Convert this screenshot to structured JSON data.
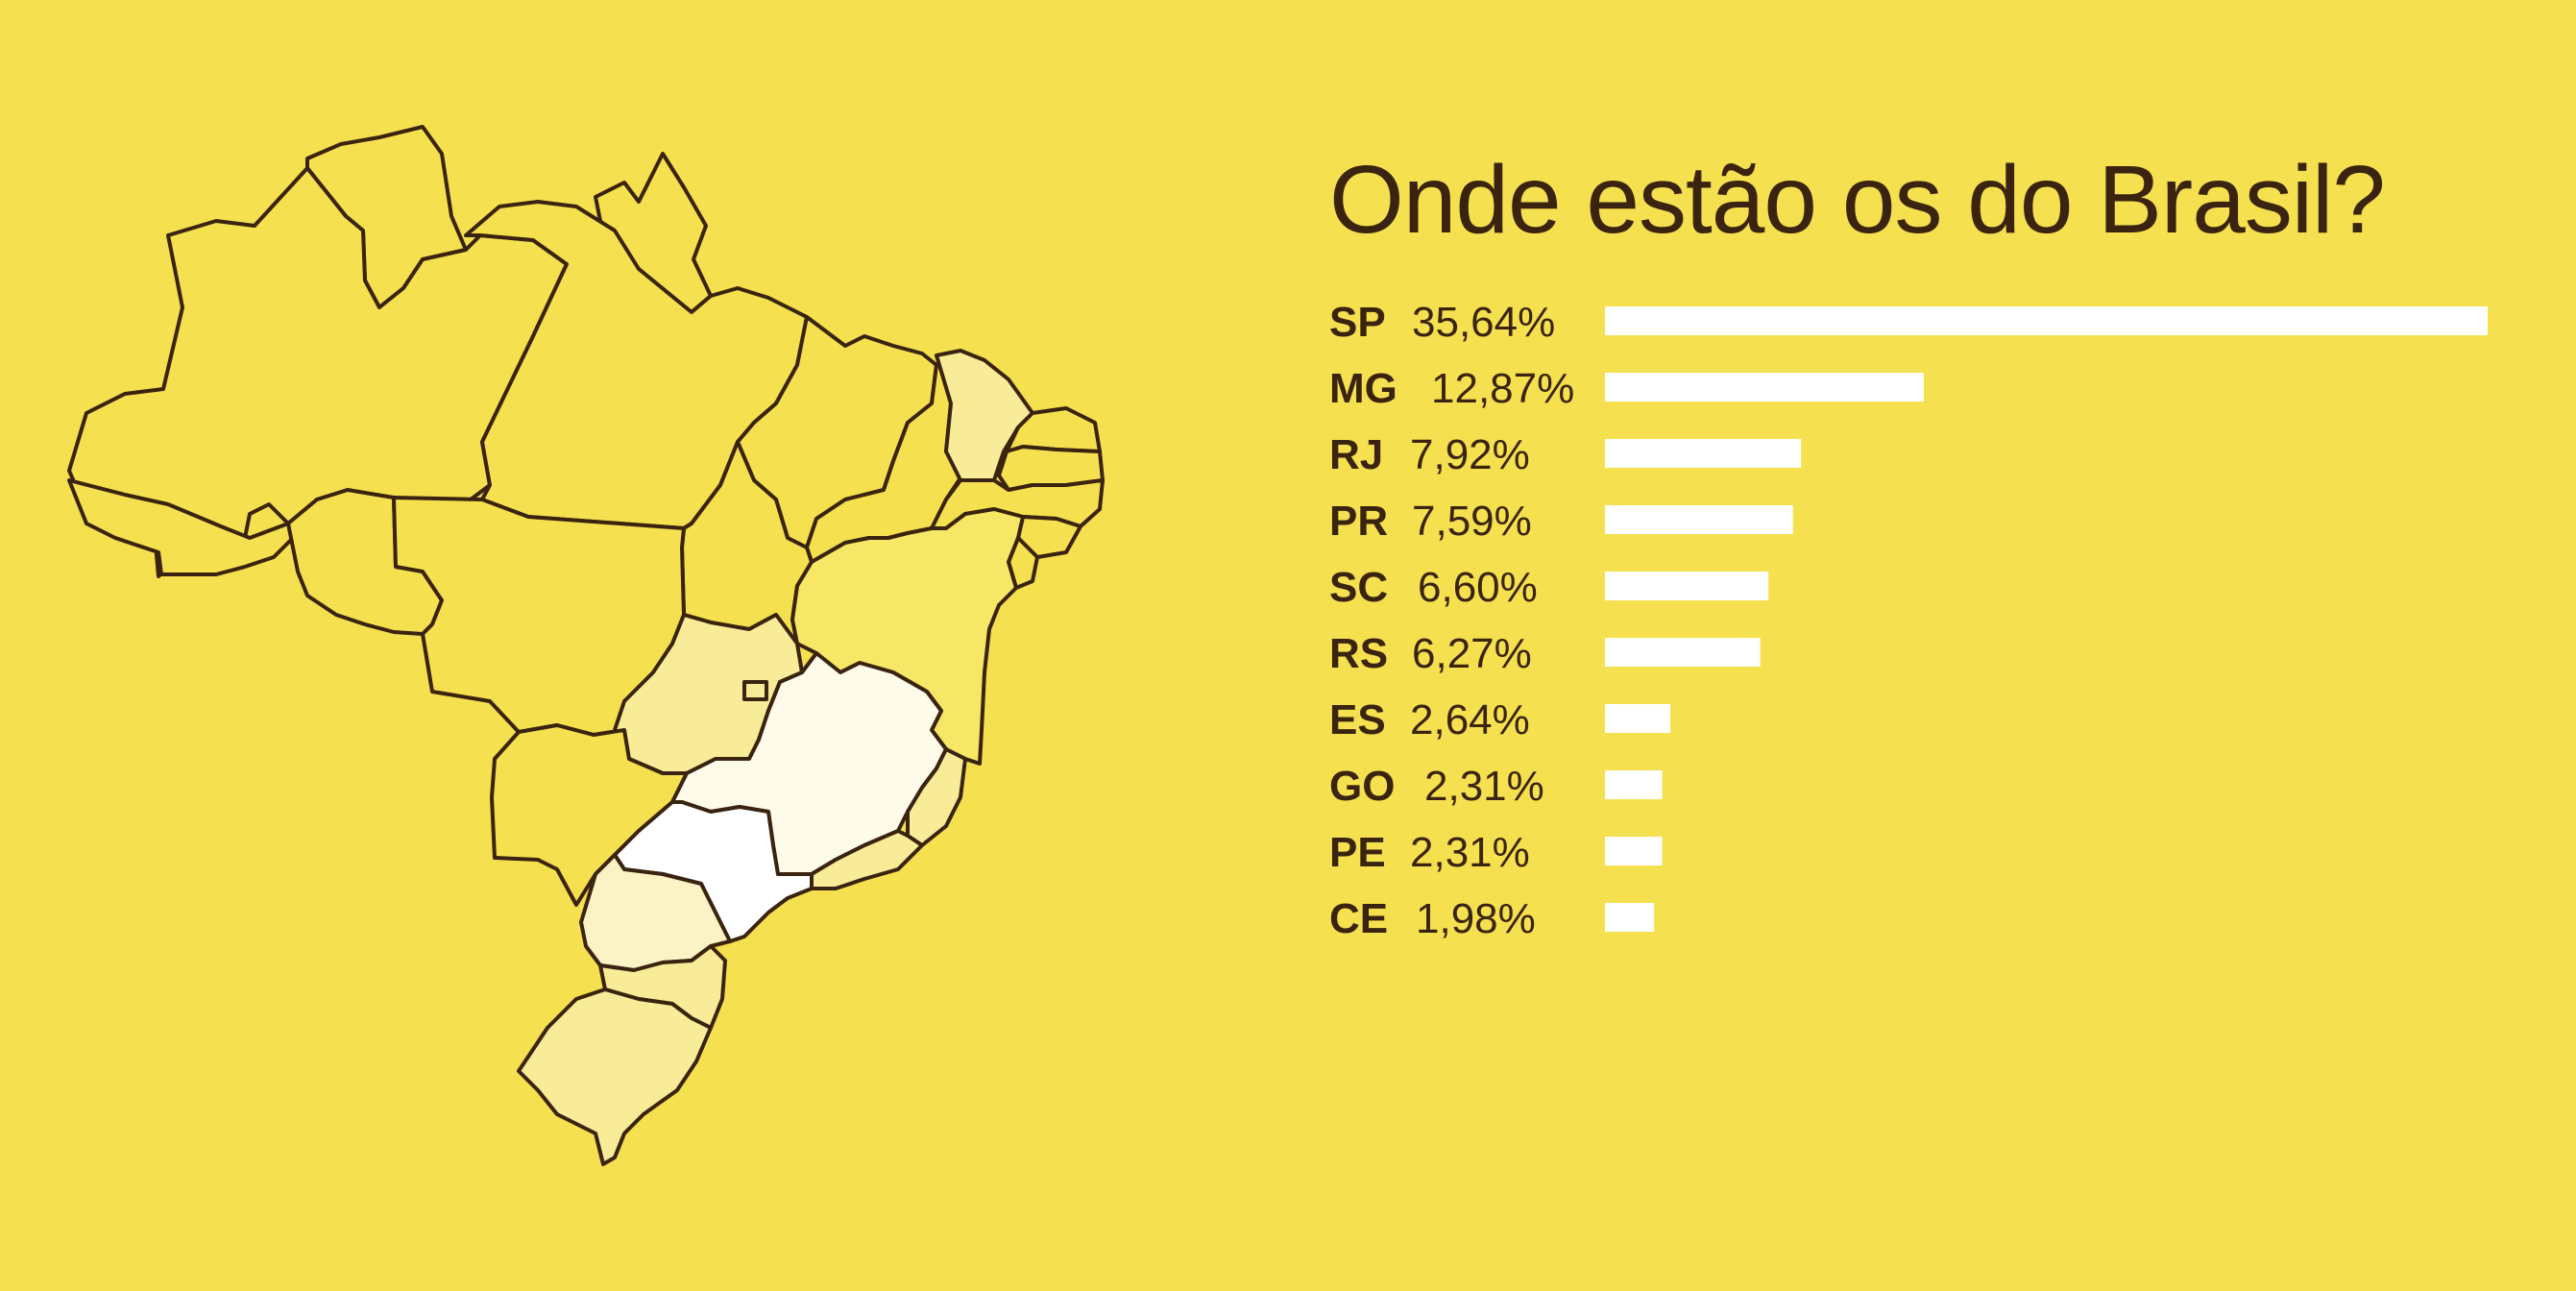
{
  "page": {
    "background_color": "#F5E04F",
    "text_color": "#3a2410"
  },
  "map": {
    "colors": {
      "base": "#F5E04F",
      "mid": "#F7E766",
      "light": "#F8EC99",
      "pale": "#FBF3C6",
      "whiteish": "#FEFBEA",
      "white": "#FFFFFF",
      "outline": "#3a2410"
    }
  },
  "chart_data": {
    "type": "bar",
    "orientation": "horizontal",
    "title": "Onde estão os do Brasil?",
    "categories": [
      "SP",
      "MG",
      "RJ",
      "PR",
      "SC",
      "RS",
      "ES",
      "GO",
      "PE",
      "CE"
    ],
    "value_labels": [
      "35,64%",
      "12,87%",
      "7,92%",
      "7,59%",
      "6,60%",
      "6,27%",
      "2,64%",
      "2,31%",
      "2,31%",
      "1,98%"
    ],
    "values": [
      35.64,
      12.87,
      7.92,
      7.59,
      6.6,
      6.27,
      2.64,
      2.31,
      2.31,
      1.98
    ],
    "bar_color": "#FFFFFF",
    "grid": false,
    "legend": "none"
  }
}
